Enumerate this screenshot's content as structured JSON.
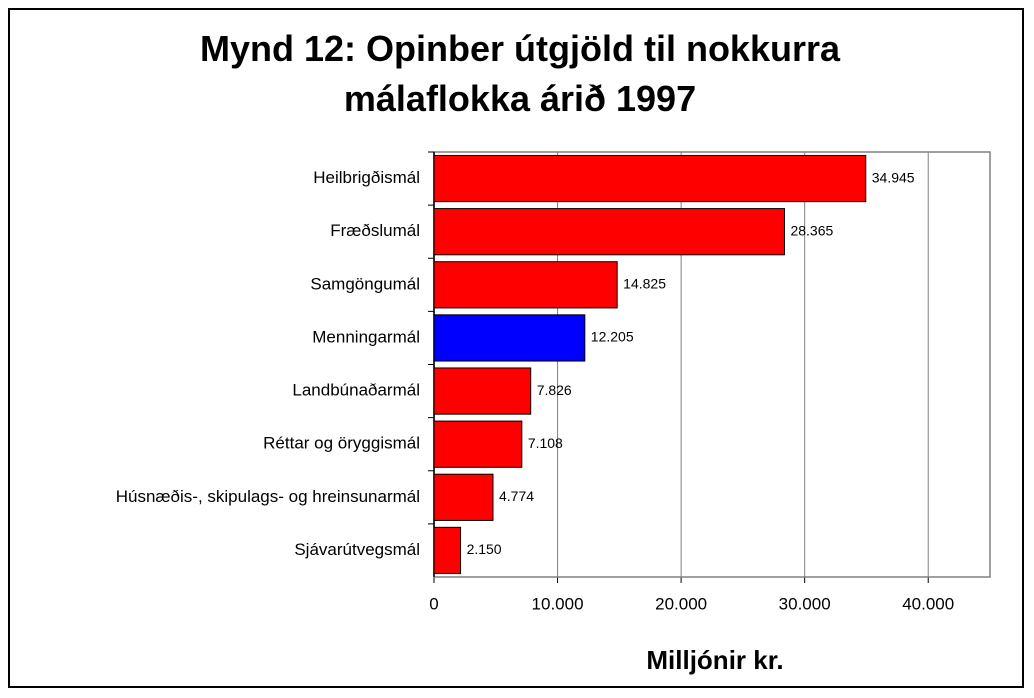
{
  "chart_data": {
    "type": "barh",
    "title": "Mynd 12: Opinber útgjöld til nokkurra málaflokka árið 1997",
    "xlabel": "Milljónir kr.",
    "categories": [
      "Heilbrigðismál",
      "Fræðslumál",
      "Samgöngumál",
      "Menningarmál",
      "Landbúnaðarmál",
      "Réttar og öryggismál",
      "Húsnæðis-, skipulags- og hreinsunarmál",
      "Sjávarútvegsmál"
    ],
    "values": [
      34945,
      28365,
      14825,
      12205,
      7826,
      7108,
      4774,
      2150
    ],
    "value_labels": [
      "34.945",
      "28.365",
      "14.825",
      "12.205",
      "7.826",
      "7.108",
      "4.774",
      "2.150"
    ],
    "colors": [
      "#ff0000",
      "#ff0000",
      "#ff0000",
      "#0000ff",
      "#ff0000",
      "#ff0000",
      "#ff0000",
      "#ff0000"
    ],
    "xlim": [
      0,
      45000
    ],
    "xticks": [
      0,
      {
        "value": 10000,
        "label": "10.000"
      },
      {
        "value": 20000,
        "label": "20.000"
      },
      {
        "value": 30000,
        "label": "30.000"
      },
      {
        "value": 40000,
        "label": "40.000"
      }
    ],
    "grid": true
  }
}
